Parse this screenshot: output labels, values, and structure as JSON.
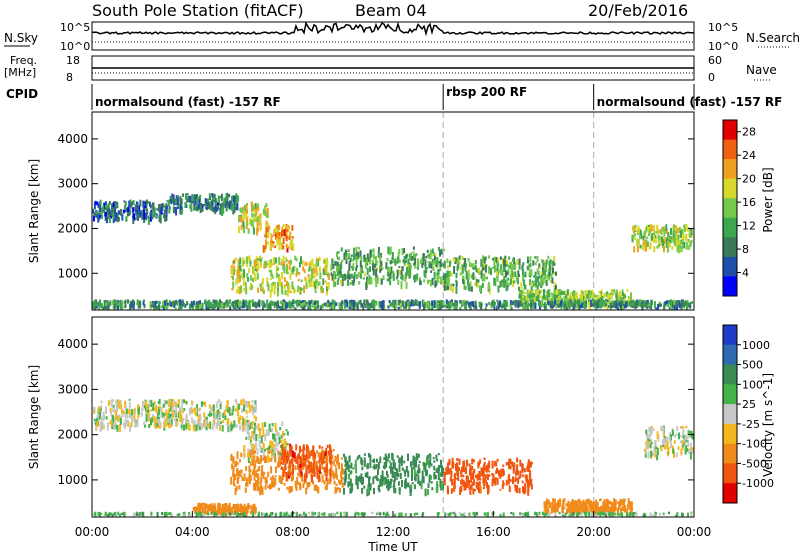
{
  "header": {
    "station": "South Pole Station (fitACF)",
    "beam": "Beam 04",
    "date": "20/Feb/2016"
  },
  "top_panels": {
    "nsky_label": "N.Sky",
    "nsky_ticks": [
      "10^5",
      "10^0"
    ],
    "nsearch_label": "N.Search",
    "nsearch_ticks": [
      "10^5",
      "10^0"
    ],
    "freq_label_1": "Freq.",
    "freq_label_2": "[MHz]",
    "freq_ticks": [
      "18",
      "8"
    ],
    "nave_label": "Nave",
    "nave_ticks": [
      "60",
      "0"
    ],
    "cpid_label": "CPID",
    "cpid_segments": [
      {
        "label": "normalsound (fast) -157 RF",
        "start_hour": 0,
        "end_hour": 14
      },
      {
        "label": "rbsp 200 RF",
        "start_hour": 14,
        "end_hour": 20
      },
      {
        "label": "normalsound (fast) -157 RF",
        "start_hour": 20,
        "end_hour": 24
      }
    ]
  },
  "chart_data": [
    {
      "type": "heatmap",
      "parameter": "Power",
      "ylabel": "Slant Range [km]",
      "xlabel": "Time UT",
      "xlim": [
        0,
        24
      ],
      "ylim": [
        180,
        4600
      ],
      "x_ticks": [
        "00:00",
        "04:00",
        "08:00",
        "12:00",
        "16:00",
        "20:00",
        "00:00"
      ],
      "y_ticks": [
        1000,
        2000,
        3000,
        4000
      ],
      "colorbar": {
        "label": "Power [dB]",
        "ticks": [
          "4",
          "8",
          "12",
          "16",
          "20",
          "24",
          "28"
        ],
        "range": [
          0,
          30
        ]
      },
      "colors": [
        "#0000ff",
        "#1f4faa",
        "#3b7a57",
        "#3ea64e",
        "#74c84a",
        "#d8d82b",
        "#f0a020",
        "#f06010",
        "#e00000"
      ],
      "bands": [
        {
          "t0": 0.0,
          "t1": 3.0,
          "r0": 2250,
          "r1": 2650,
          "value": 7
        },
        {
          "t0": 3.0,
          "t1": 5.8,
          "r0": 2450,
          "r1": 2800,
          "value": 8
        },
        {
          "t0": 5.8,
          "t1": 7.0,
          "r0": 2000,
          "r1": 2600,
          "value": 18
        },
        {
          "t0": 6.8,
          "t1": 8.0,
          "r0": 1600,
          "r1": 2100,
          "value": 22
        },
        {
          "t0": 5.5,
          "t1": 9.5,
          "r0": 600,
          "r1": 1400,
          "value": 17
        },
        {
          "t0": 9.5,
          "t1": 14.0,
          "r0": 800,
          "r1": 1600,
          "value": 12
        },
        {
          "t0": 14.0,
          "t1": 18.5,
          "r0": 700,
          "r1": 1400,
          "value": 13
        },
        {
          "t0": 17.0,
          "t1": 21.5,
          "r0": 350,
          "r1": 650,
          "value": 15
        },
        {
          "t0": 21.5,
          "t1": 24.0,
          "r0": 1600,
          "r1": 2100,
          "value": 16
        },
        {
          "t0": 0.0,
          "t1": 24.0,
          "r0": 180,
          "r1": 420,
          "value": 10
        }
      ]
    },
    {
      "type": "heatmap",
      "parameter": "Velocity",
      "ylabel": "Slant Range [km]",
      "xlabel": "Time UT",
      "xlim": [
        0,
        24
      ],
      "ylim": [
        180,
        4600
      ],
      "x_ticks": [
        "00:00",
        "04:00",
        "08:00",
        "12:00",
        "16:00",
        "20:00",
        "00:00"
      ],
      "y_ticks": [
        1000,
        2000,
        3000,
        4000
      ],
      "colorbar": {
        "label": "Velocity [m s^-1]",
        "ticks": [
          "1000",
          "500",
          "100",
          "25",
          "-25",
          "-100",
          "-500",
          "-1000"
        ]
      },
      "colors": [
        "#1e3cc8",
        "#2e6ab0",
        "#3a8a55",
        "#44b44a",
        "#c8c8c8",
        "#f2b81e",
        "#f08a1a",
        "#f05510",
        "#e00000"
      ],
      "bands": [
        {
          "t0": 0.0,
          "t1": 6.5,
          "r0": 2200,
          "r1": 2800,
          "value": 0
        },
        {
          "t0": 6.0,
          "t1": 7.8,
          "r0": 1500,
          "r1": 2300,
          "value": 0
        },
        {
          "t0": 5.5,
          "t1": 10.0,
          "r0": 800,
          "r1": 1700,
          "value": -300
        },
        {
          "t0": 7.5,
          "t1": 9.5,
          "r0": 1100,
          "r1": 1800,
          "value": -800
        },
        {
          "t0": 10.0,
          "t1": 14.0,
          "r0": 800,
          "r1": 1600,
          "value": 150
        },
        {
          "t0": 14.0,
          "t1": 17.5,
          "r0": 800,
          "r1": 1500,
          "value": -700
        },
        {
          "t0": 4.0,
          "t1": 6.5,
          "r0": 300,
          "r1": 500,
          "value": -300
        },
        {
          "t0": 18.0,
          "t1": 21.5,
          "r0": 350,
          "r1": 600,
          "value": -300
        },
        {
          "t0": 22.0,
          "t1": 24.0,
          "r0": 1600,
          "r1": 2200,
          "value": 0
        },
        {
          "t0": 0.0,
          "t1": 24.0,
          "r0": 180,
          "r1": 300,
          "value": 60
        }
      ]
    }
  ]
}
